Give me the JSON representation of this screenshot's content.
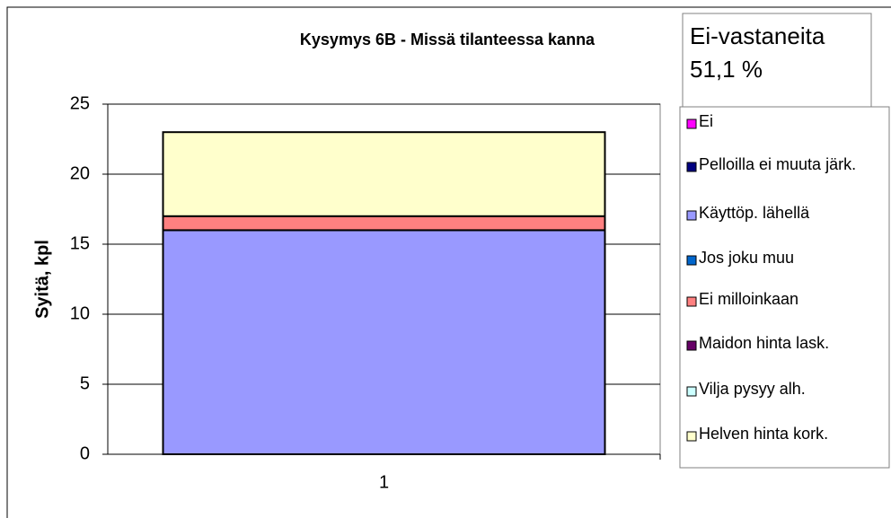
{
  "chart_data": {
    "type": "bar",
    "stacked": true,
    "title": "Kysymys 6B - Missä tilanteessa kanna",
    "annotation": "Ei-vastaneita 51,1 %",
    "y_label": "Syitä, kpl",
    "categories": [
      "1"
    ],
    "ylim": [
      0,
      25
    ],
    "yticks": [
      0,
      5,
      10,
      15,
      20,
      25
    ],
    "grid": true,
    "series": [
      {
        "name": "Ei",
        "color": "#FF00FF",
        "values": [
          0
        ]
      },
      {
        "name": "Pelloilla ei muuta järk.",
        "color": "#000080",
        "values": [
          0
        ]
      },
      {
        "name": "Käyttöp. lähellä",
        "color": "#9999FF",
        "values": [
          16
        ]
      },
      {
        "name": "Jos joku muu",
        "color": "#0066CC",
        "values": [
          0
        ]
      },
      {
        "name": "Ei milloinkaan",
        "color": "#FF8080",
        "values": [
          1
        ]
      },
      {
        "name": "Maidon hinta lask.",
        "color": "#660066",
        "values": [
          0
        ]
      },
      {
        "name": "Vilja pysyy alh.",
        "color": "#CCFFFF",
        "values": [
          0
        ]
      },
      {
        "name": "Helven hinta kork.",
        "color": "#FFFFCC",
        "values": [
          6
        ]
      }
    ]
  }
}
